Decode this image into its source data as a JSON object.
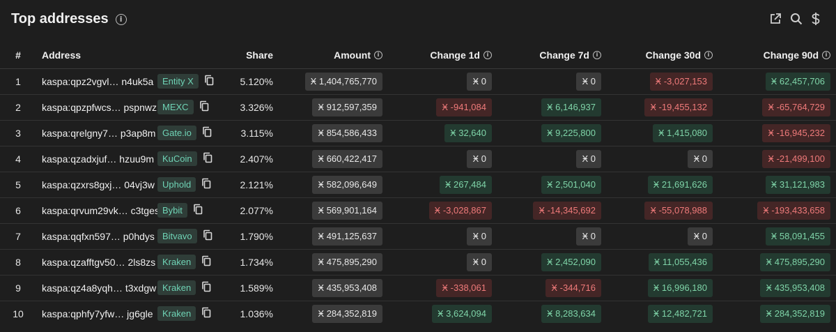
{
  "header": {
    "title": "Top addresses",
    "info_glyph": "i"
  },
  "columns": {
    "rank": "#",
    "address": "Address",
    "share": "Share",
    "amount": "Amount",
    "change_1d": "Change 1d",
    "change_7d": "Change 7d",
    "change_30d": "Change 30d",
    "change_90d": "Change 90d"
  },
  "currency_symbol": "Ӿ",
  "colors": {
    "positive": "#7fd4a8",
    "negative": "#ef7a7a",
    "tag": "#6fd3b5"
  },
  "rows": [
    {
      "rank": "1",
      "address": "kaspa:qpz2vgvl… n4uk5a",
      "tag": "Entity X",
      "share": "5.120%",
      "amount": "1,404,765,770",
      "c1d": "0",
      "c7d": "0",
      "c30d": "-3,027,153",
      "c90d": "62,457,706"
    },
    {
      "rank": "2",
      "address": "kaspa:qpzpfwcs… pspnwz",
      "tag": "MEXC",
      "share": "3.326%",
      "amount": "912,597,359",
      "c1d": "-941,084",
      "c7d": "6,146,937",
      "c30d": "-19,455,132",
      "c90d": "-65,764,729"
    },
    {
      "rank": "3",
      "address": "kaspa:qrelgny7… p3ap8m",
      "tag": "Gate.io",
      "share": "3.115%",
      "amount": "854,586,433",
      "c1d": "32,640",
      "c7d": "9,225,800",
      "c30d": "1,415,080",
      "c90d": "-16,945,232"
    },
    {
      "rank": "4",
      "address": "kaspa:qzadxjuf… hzuu9m",
      "tag": "KuCoin",
      "share": "2.407%",
      "amount": "660,422,417",
      "c1d": "0",
      "c7d": "0",
      "c30d": "0",
      "c90d": "-21,499,100"
    },
    {
      "rank": "5",
      "address": "kaspa:qzxrs8gxj… 04vj3w",
      "tag": "Uphold",
      "share": "2.121%",
      "amount": "582,096,649",
      "c1d": "267,484",
      "c7d": "2,501,040",
      "c30d": "21,691,626",
      "c90d": "31,121,983"
    },
    {
      "rank": "6",
      "address": "kaspa:qrvum29vk… c3tges",
      "tag": "Bybit",
      "share": "2.077%",
      "amount": "569,901,164",
      "c1d": "-3,028,867",
      "c7d": "-14,345,692",
      "c30d": "-55,078,988",
      "c90d": "-193,433,658"
    },
    {
      "rank": "7",
      "address": "kaspa:qqfxn597… p0hdys",
      "tag": "Bitvavo",
      "share": "1.790%",
      "amount": "491,125,637",
      "c1d": "0",
      "c7d": "0",
      "c30d": "0",
      "c90d": "58,091,455"
    },
    {
      "rank": "8",
      "address": "kaspa:qzafftgv50… 2ls8zs",
      "tag": "Kraken",
      "share": "1.734%",
      "amount": "475,895,290",
      "c1d": "0",
      "c7d": "2,452,090",
      "c30d": "11,055,436",
      "c90d": "475,895,290"
    },
    {
      "rank": "9",
      "address": "kaspa:qz4a8yqh… t3xdgw",
      "tag": "Kraken",
      "share": "1.589%",
      "amount": "435,953,408",
      "c1d": "-338,061",
      "c7d": "-344,716",
      "c30d": "16,996,180",
      "c90d": "435,953,408"
    },
    {
      "rank": "10",
      "address": "kaspa:qphfy7yfw… jg6gle",
      "tag": "Kraken",
      "share": "1.036%",
      "amount": "284,352,819",
      "c1d": "3,624,094",
      "c7d": "8,283,634",
      "c30d": "12,482,721",
      "c90d": "284,352,819"
    }
  ]
}
